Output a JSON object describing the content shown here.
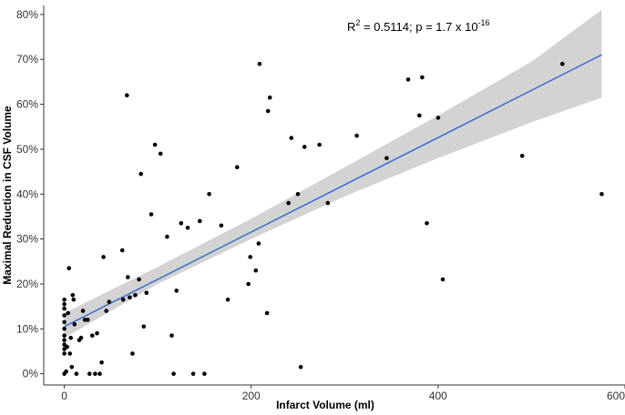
{
  "chart_data": {
    "type": "scatter",
    "xlabel": "Infarct Volume (ml)",
    "ylabel": "Maximal Reduction in CSF Volume",
    "xlim": [
      -22,
      600
    ],
    "ylim": [
      -2.5,
      82
    ],
    "x_ticks": [
      0,
      200,
      400,
      600
    ],
    "x_tick_labels": [
      "0",
      "200",
      "400",
      "600"
    ],
    "y_ticks": [
      0,
      10,
      20,
      30,
      40,
      50,
      60,
      70,
      80
    ],
    "y_tick_labels": [
      "0%",
      "10%",
      "20%",
      "30%",
      "40%",
      "50%",
      "60%",
      "70%",
      "80%"
    ],
    "grid": false,
    "annotation": {
      "r2_base": "R",
      "r2_exp": "2",
      "middle": " = 0.5114; p = 1.7 x 10",
      "p_exp": "-16"
    },
    "fit_line": {
      "x": [
        0,
        575
      ],
      "y": [
        10.5,
        71
      ]
    },
    "ci_band": {
      "x": [
        0,
        100,
        200,
        300,
        400,
        500,
        575
      ],
      "lower": [
        8,
        20,
        30,
        39.5,
        48,
        56,
        61.5
      ],
      "upper": [
        13.5,
        23.8,
        34.5,
        46,
        57.5,
        69.5,
        81
      ]
    },
    "colors": {
      "points": "#000000",
      "line": "#3366cc",
      "band": "#d3d3d3",
      "axis": "#333333"
    },
    "points": [
      [
        0,
        0
      ],
      [
        0,
        4.5
      ],
      [
        0,
        5.5
      ],
      [
        0,
        6.5
      ],
      [
        0,
        7.5
      ],
      [
        0,
        8.5
      ],
      [
        0,
        10
      ],
      [
        0,
        11.5
      ],
      [
        0,
        13
      ],
      [
        0,
        14.5
      ],
      [
        0,
        15.5
      ],
      [
        0,
        16.5
      ],
      [
        2,
        0.5
      ],
      [
        3,
        6
      ],
      [
        4,
        13.5
      ],
      [
        5,
        23.5
      ],
      [
        6,
        4.5
      ],
      [
        7,
        8
      ],
      [
        8,
        1.5
      ],
      [
        9,
        17.5
      ],
      [
        10,
        16.5
      ],
      [
        11,
        11
      ],
      [
        13,
        0
      ],
      [
        16,
        7.5
      ],
      [
        18,
        8
      ],
      [
        20,
        14
      ],
      [
        22,
        12
      ],
      [
        25,
        12
      ],
      [
        27,
        0
      ],
      [
        30,
        8.5
      ],
      [
        33,
        0
      ],
      [
        35,
        9
      ],
      [
        38,
        0
      ],
      [
        40,
        2.5
      ],
      [
        42,
        26
      ],
      [
        45,
        14
      ],
      [
        48,
        16
      ],
      [
        62,
        27.5
      ],
      [
        63,
        16.5
      ],
      [
        67,
        62
      ],
      [
        68,
        21.5
      ],
      [
        70,
        17
      ],
      [
        73,
        4.5
      ],
      [
        76,
        17.5
      ],
      [
        80,
        21
      ],
      [
        82,
        44.5
      ],
      [
        85,
        10.5
      ],
      [
        88,
        18
      ],
      [
        93,
        35.5
      ],
      [
        97,
        51
      ],
      [
        103,
        49
      ],
      [
        110,
        30.5
      ],
      [
        115,
        8.5
      ],
      [
        117,
        0
      ],
      [
        120,
        18.5
      ],
      [
        125,
        33.5
      ],
      [
        132,
        32.5
      ],
      [
        138,
        0
      ],
      [
        145,
        34
      ],
      [
        150,
        0
      ],
      [
        155,
        40
      ],
      [
        168,
        33
      ],
      [
        175,
        16.5
      ],
      [
        185,
        46
      ],
      [
        197,
        20
      ],
      [
        199,
        26
      ],
      [
        205,
        23
      ],
      [
        208,
        29
      ],
      [
        209,
        69
      ],
      [
        217,
        13.5
      ],
      [
        218,
        58.5
      ],
      [
        220,
        61.5
      ],
      [
        240,
        38
      ],
      [
        243,
        52.5
      ],
      [
        250,
        40
      ],
      [
        253,
        1.5
      ],
      [
        257,
        50.5
      ],
      [
        273,
        51
      ],
      [
        282,
        38
      ],
      [
        313,
        53
      ],
      [
        345,
        48
      ],
      [
        368,
        65.5
      ],
      [
        380,
        57.5
      ],
      [
        383,
        66
      ],
      [
        388,
        33.5
      ],
      [
        400,
        57
      ],
      [
        405,
        21
      ],
      [
        490,
        48.5
      ],
      [
        533,
        69
      ],
      [
        575,
        40
      ]
    ]
  }
}
